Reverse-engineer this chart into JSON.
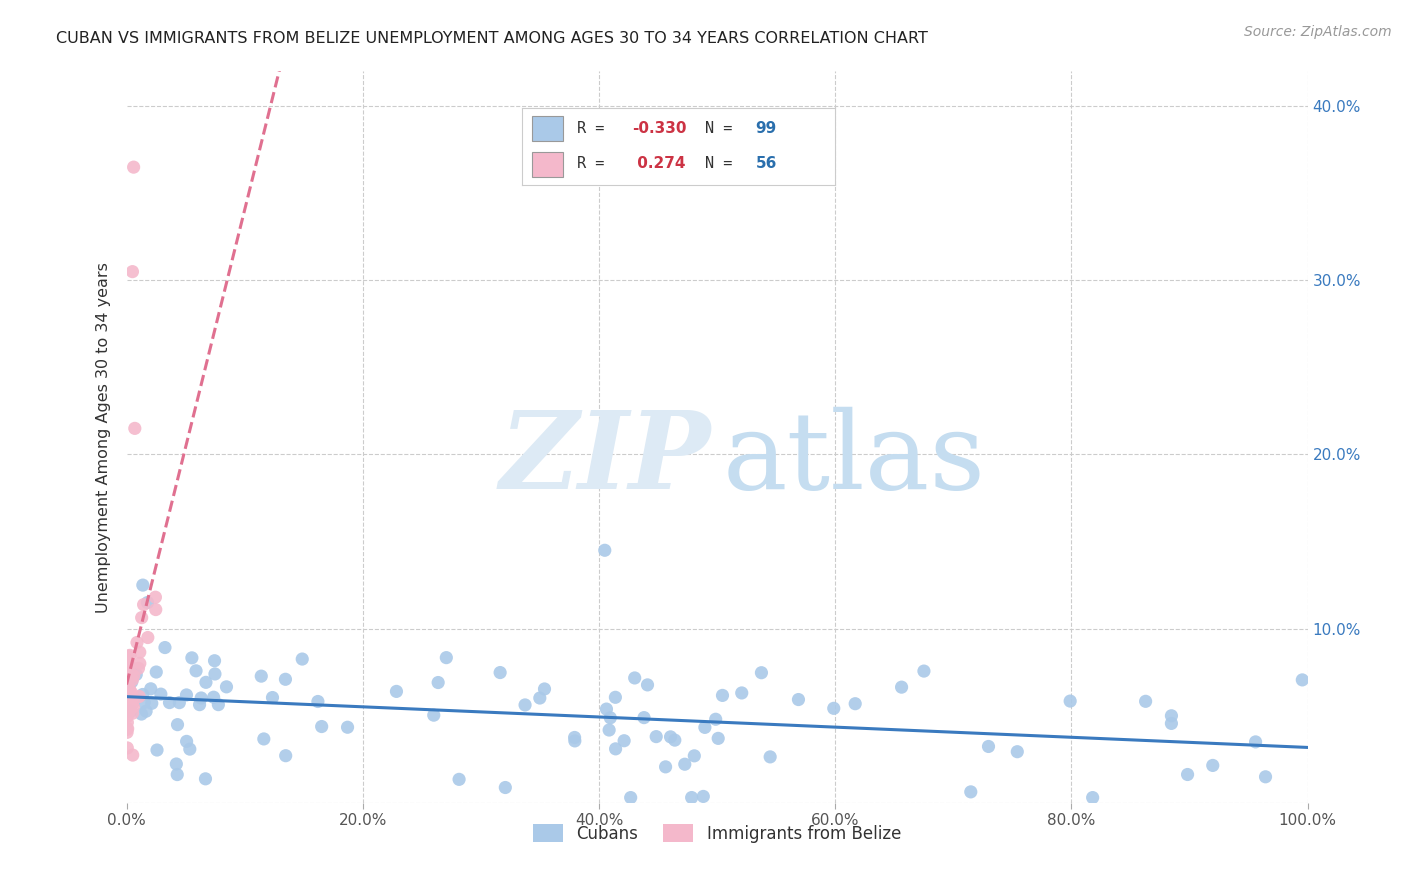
{
  "title": "CUBAN VS IMMIGRANTS FROM BELIZE UNEMPLOYMENT AMONG AGES 30 TO 34 YEARS CORRELATION CHART",
  "source": "Source: ZipAtlas.com",
  "ylabel": "Unemployment Among Ages 30 to 34 years",
  "xlim": [
    0,
    1.0
  ],
  "ylim": [
    0,
    0.42
  ],
  "blue_R": -0.33,
  "blue_N": 99,
  "pink_R": 0.274,
  "pink_N": 56,
  "blue_color": "#aac9e8",
  "blue_line_color": "#3a7abf",
  "pink_color": "#f4b8cb",
  "pink_line_color": "#e07090",
  "ytick_values": [
    0.0,
    0.1,
    0.2,
    0.3,
    0.4
  ],
  "ytick_labels_right": [
    "",
    "10.0%",
    "20.0%",
    "30.0%",
    "40.0%"
  ],
  "xtick_values": [
    0.0,
    0.2,
    0.4,
    0.6,
    0.8,
    1.0
  ],
  "xtick_labels": [
    "0.0%",
    "20.0%",
    "40.0%",
    "60.0%",
    "80.0%",
    "100.0%"
  ]
}
